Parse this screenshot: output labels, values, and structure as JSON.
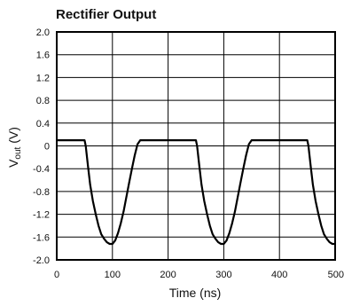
{
  "chart_data": {
    "type": "line",
    "title": "Rectifier Output",
    "xlabel": "Time (ns)",
    "ylabel_main": "V",
    "ylabel_sub": "out",
    "ylabel_unit": " (V)",
    "xlim": [
      0,
      500
    ],
    "ylim": [
      -2.0,
      2.0
    ],
    "x_ticks": [
      "0",
      "100",
      "200",
      "300",
      "400",
      "500"
    ],
    "y_ticks": [
      "2.0",
      "1.6",
      "1.2",
      "0.8",
      "0.4",
      "0",
      "-0.4",
      "-0.8",
      "-1.2",
      "-1.6",
      "-2.0"
    ],
    "grid": true,
    "series": [
      {
        "x": [
          0,
          50,
          52,
          56,
          60,
          65,
          70,
          75,
          80,
          85,
          90,
          95,
          100,
          105,
          110,
          115,
          120,
          125,
          130,
          135,
          140,
          145,
          150,
          250,
          252,
          256,
          260,
          265,
          270,
          275,
          280,
          285,
          290,
          295,
          300,
          305,
          310,
          315,
          320,
          325,
          330,
          335,
          340,
          345,
          350,
          450,
          452,
          456,
          460,
          465,
          470,
          475,
          480,
          485,
          490,
          495,
          500
        ],
        "y": [
          0.1,
          0.1,
          0.0,
          -0.35,
          -0.68,
          -0.97,
          -1.2,
          -1.4,
          -1.55,
          -1.63,
          -1.69,
          -1.72,
          -1.72,
          -1.66,
          -1.53,
          -1.36,
          -1.15,
          -0.9,
          -0.65,
          -0.4,
          -0.17,
          0.03,
          0.1,
          0.1,
          0.0,
          -0.35,
          -0.68,
          -0.97,
          -1.2,
          -1.4,
          -1.55,
          -1.63,
          -1.69,
          -1.72,
          -1.72,
          -1.66,
          -1.53,
          -1.36,
          -1.15,
          -0.9,
          -0.65,
          -0.4,
          -0.17,
          0.03,
          0.1,
          0.1,
          0.0,
          -0.35,
          -0.68,
          -0.97,
          -1.2,
          -1.4,
          -1.55,
          -1.63,
          -1.69,
          -1.72,
          -1.72
        ]
      }
    ]
  }
}
